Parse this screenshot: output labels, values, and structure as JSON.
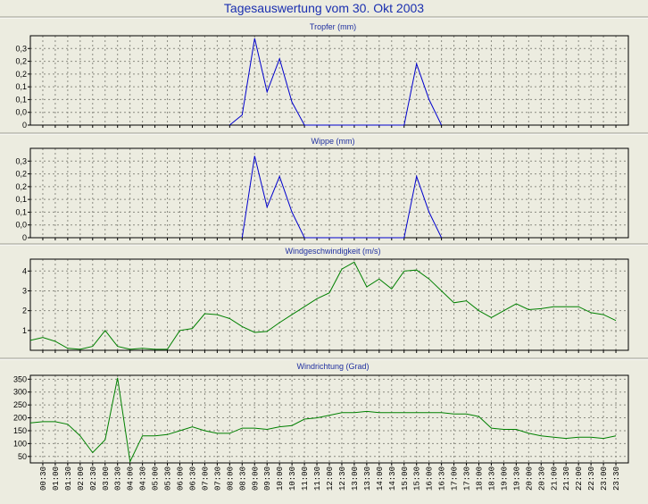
{
  "header": {
    "title": "Tagesauswertung vom 30. Okt 2003"
  },
  "chart_data": [
    {
      "type": "line",
      "title": "Tropfer (mm)",
      "color": "#0000cc",
      "ylim": [
        0,
        0.35
      ],
      "yticks": [
        0,
        0.05,
        0.1,
        0.15,
        0.2,
        0.25,
        0.3
      ],
      "ytick_labels": [
        "0",
        "0,0",
        "0,1",
        "0,1",
        "0,2",
        "0,2",
        "0,3"
      ],
      "grid": true,
      "x": [
        "08:00",
        "08:30",
        "09:00",
        "09:30",
        "10:00",
        "10:30",
        "11:00",
        "11:30",
        "15:00",
        "15:30",
        "16:00",
        "16:30"
      ],
      "values": [
        0,
        0.04,
        0.34,
        0.13,
        0.26,
        0.09,
        0,
        0,
        0,
        0.24,
        0.1,
        0
      ]
    },
    {
      "type": "line",
      "title": "Wippe (mm)",
      "color": "#0000cc",
      "ylim": [
        0,
        0.35
      ],
      "yticks": [
        0,
        0.05,
        0.1,
        0.15,
        0.2,
        0.25,
        0.3
      ],
      "ytick_labels": [
        "0",
        "0,0",
        "0,1",
        "0,1",
        "0,2",
        "0,2",
        "0,3"
      ],
      "grid": true,
      "x": [
        "08:30",
        "09:00",
        "09:30",
        "10:00",
        "10:30",
        "11:00",
        "15:00",
        "15:30",
        "16:00",
        "16:30"
      ],
      "values": [
        0,
        0.32,
        0.12,
        0.24,
        0.1,
        0,
        0,
        0.24,
        0.1,
        0
      ]
    },
    {
      "type": "line",
      "title": "Windgeschwindigkeit (m/s)",
      "color": "#008000",
      "ylim": [
        0,
        4.6
      ],
      "yticks": [
        1,
        2,
        3,
        4
      ],
      "ytick_labels": [
        "1",
        "2",
        "3",
        "4"
      ],
      "grid": true,
      "x": [
        "00:00",
        "00:30",
        "01:00",
        "01:30",
        "02:00",
        "02:30",
        "03:00",
        "03:30",
        "04:00",
        "04:30",
        "05:00",
        "05:30",
        "06:00",
        "06:30",
        "07:00",
        "07:30",
        "08:00",
        "08:30",
        "09:00",
        "09:30",
        "10:00",
        "10:30",
        "11:00",
        "11:30",
        "12:00",
        "12:30",
        "13:00",
        "13:30",
        "14:00",
        "14:30",
        "15:00",
        "15:30",
        "16:00",
        "16:30",
        "17:00",
        "17:30",
        "18:00",
        "18:30",
        "19:00",
        "19:30",
        "20:00",
        "20:30",
        "21:00",
        "21:30",
        "22:00",
        "22:30",
        "23:00",
        "23:30"
      ],
      "values": [
        0.5,
        0.65,
        0.45,
        0.1,
        0.05,
        0.2,
        1.0,
        0.2,
        0.05,
        0.1,
        0.05,
        0.05,
        1.0,
        1.1,
        1.85,
        1.8,
        1.6,
        1.2,
        0.9,
        0.95,
        1.4,
        1.8,
        2.2,
        2.6,
        2.9,
        4.1,
        4.45,
        3.2,
        3.6,
        3.1,
        4.0,
        4.05,
        3.6,
        3.0,
        2.4,
        2.5,
        2.0,
        1.65,
        2.0,
        2.35,
        2.05,
        2.1,
        2.2,
        2.2,
        2.2,
        1.9,
        1.8,
        1.5
      ]
    },
    {
      "type": "line",
      "title": "Windrichtung (Grad)",
      "color": "#008000",
      "ylim": [
        25,
        365
      ],
      "yticks": [
        50,
        100,
        150,
        200,
        250,
        300,
        350
      ],
      "ytick_labels": [
        "50",
        "100",
        "150",
        "200",
        "250",
        "300",
        "350"
      ],
      "grid": true,
      "x": [
        "00:00",
        "00:30",
        "01:00",
        "01:30",
        "02:00",
        "02:30",
        "03:00",
        "03:30",
        "04:00",
        "04:30",
        "05:00",
        "05:30",
        "06:00",
        "06:30",
        "07:00",
        "07:30",
        "08:00",
        "08:30",
        "09:00",
        "09:30",
        "10:00",
        "10:30",
        "11:00",
        "11:30",
        "12:00",
        "12:30",
        "13:00",
        "13:30",
        "14:00",
        "14:30",
        "15:00",
        "15:30",
        "16:00",
        "16:30",
        "17:00",
        "17:30",
        "18:00",
        "18:30",
        "19:00",
        "19:30",
        "20:00",
        "20:30",
        "21:00",
        "21:30",
        "22:00",
        "22:30",
        "23:00",
        "23:30"
      ],
      "values": [
        180,
        185,
        185,
        175,
        130,
        65,
        115,
        355,
        30,
        130,
        130,
        135,
        150,
        165,
        150,
        140,
        140,
        160,
        160,
        155,
        165,
        170,
        195,
        200,
        210,
        220,
        220,
        225,
        220,
        220,
        220,
        220,
        220,
        220,
        215,
        215,
        205,
        160,
        155,
        155,
        140,
        130,
        125,
        120,
        125,
        125,
        120,
        130
      ]
    }
  ],
  "x_axis": {
    "ticks": [
      "00:30",
      "01:00",
      "01:30",
      "02:00",
      "02:30",
      "03:00",
      "03:30",
      "04:00",
      "04:30",
      "05:00",
      "05:30",
      "06:00",
      "06:30",
      "07:00",
      "07:30",
      "08:00",
      "08:30",
      "09:00",
      "09:30",
      "10:00",
      "10:30",
      "11:00",
      "11:30",
      "12:00",
      "12:30",
      "13:00",
      "13:30",
      "14:00",
      "14:30",
      "15:00",
      "15:30",
      "16:00",
      "16:30",
      "17:00",
      "17:30",
      "18:00",
      "18:30",
      "19:00",
      "19:30",
      "20:00",
      "20:30",
      "21:00",
      "21:30",
      "22:00",
      "22:30",
      "23:00",
      "23:30"
    ]
  }
}
